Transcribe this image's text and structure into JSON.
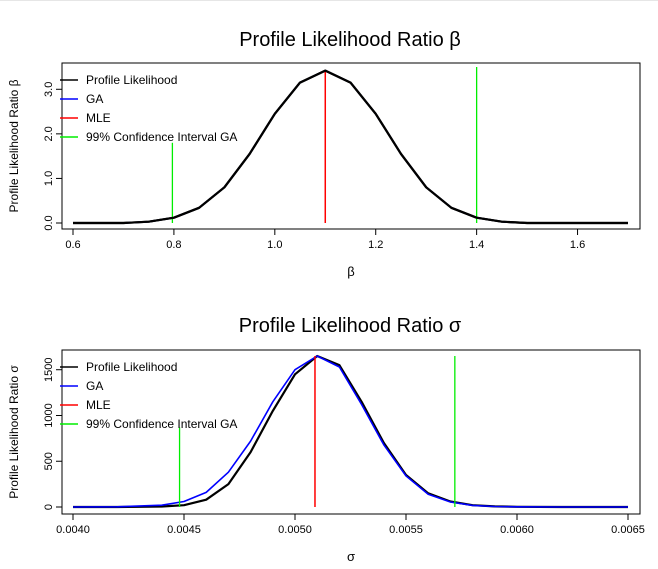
{
  "chart_data": [
    {
      "type": "line",
      "title": "Profile Likelihood Ratio β",
      "xlabel": "β",
      "ylabel": "Profile Likelihood Ratio β",
      "xlim": [
        0.6,
        1.7
      ],
      "ylim": [
        0,
        3.5
      ],
      "x_ticks": [
        "0.6",
        "0.8",
        "1.0",
        "1.2",
        "1.4",
        "1.6"
      ],
      "x_tick_values": [
        0.6,
        0.8,
        1.0,
        1.2,
        1.4,
        1.6
      ],
      "y_ticks": [
        "0.0",
        "1.0",
        "2.0",
        "3.0"
      ],
      "y_tick_values": [
        0,
        1,
        2,
        3
      ],
      "grid": false,
      "legend_position": "top-left",
      "series": [
        {
          "name": "Profile Likelihood",
          "color": "#000000",
          "kind": "line",
          "x": [
            0.6,
            0.65,
            0.7,
            0.75,
            0.8,
            0.85,
            0.9,
            0.95,
            1.0,
            1.05,
            1.1,
            1.15,
            1.2,
            1.25,
            1.3,
            1.35,
            1.4,
            1.45,
            1.5,
            1.55,
            1.6,
            1.65,
            1.7
          ],
          "y": [
            0.0,
            0.0,
            0.0,
            0.03,
            0.12,
            0.34,
            0.8,
            1.55,
            2.45,
            3.15,
            3.42,
            3.15,
            2.45,
            1.55,
            0.8,
            0.34,
            0.12,
            0.03,
            0.0,
            0.0,
            0.0,
            0.0,
            0.0
          ]
        },
        {
          "name": "GA",
          "color": "#0000ff",
          "kind": "line",
          "x": [
            0.6,
            0.65,
            0.7,
            0.75,
            0.8,
            0.85,
            0.9,
            0.95,
            1.0,
            1.05,
            1.1,
            1.15,
            1.2,
            1.25,
            1.3,
            1.35,
            1.4,
            1.45,
            1.5,
            1.55,
            1.6,
            1.65,
            1.7
          ],
          "y": [
            0.0,
            0.0,
            0.0,
            0.03,
            0.12,
            0.34,
            0.8,
            1.55,
            2.45,
            3.15,
            3.42,
            3.15,
            2.45,
            1.55,
            0.8,
            0.34,
            0.12,
            0.03,
            0.0,
            0.0,
            0.0,
            0.0,
            0.0
          ]
        },
        {
          "name": "MLE",
          "color": "#ff0000",
          "kind": "vline",
          "x": 1.1,
          "y_range": [
            0,
            3.42
          ]
        },
        {
          "name": "99% Confidence Interval GA",
          "color": "#00ee00",
          "kind": "vlines",
          "lines": [
            {
              "x": 0.797,
              "y_range": [
                0,
                1.8
              ]
            },
            {
              "x": 1.4,
              "y_range": [
                0,
                3.5
              ]
            }
          ]
        }
      ]
    },
    {
      "type": "line",
      "title": "Profile Likelihood Ratio σ",
      "xlabel": "σ",
      "ylabel": "Profile Likelihood Ratio σ",
      "xlim": [
        0.004,
        0.0065
      ],
      "ylim": [
        0,
        1650
      ],
      "x_ticks": [
        "0.0040",
        "0.0045",
        "0.0050",
        "0.0055",
        "0.0060",
        "0.0065"
      ],
      "x_tick_values": [
        0.004,
        0.0045,
        0.005,
        0.0055,
        0.006,
        0.0065
      ],
      "y_ticks": [
        "0",
        "500",
        "1000",
        "1500"
      ],
      "y_tick_values": [
        0,
        500,
        1000,
        1500
      ],
      "grid": false,
      "legend_position": "top-left",
      "series": [
        {
          "name": "Profile Likelihood",
          "color": "#000000",
          "kind": "line",
          "x": [
            0.004,
            0.0042,
            0.0044,
            0.0045,
            0.0046,
            0.0047,
            0.0048,
            0.0049,
            0.005,
            0.0051,
            0.0052,
            0.0053,
            0.0054,
            0.0055,
            0.0056,
            0.0057,
            0.0058,
            0.0059,
            0.006,
            0.0062,
            0.0065
          ],
          "y": [
            0,
            0,
            5,
            20,
            80,
            250,
            600,
            1050,
            1450,
            1650,
            1550,
            1150,
            700,
            350,
            150,
            60,
            20,
            7,
            2,
            0,
            0
          ]
        },
        {
          "name": "GA",
          "color": "#0000ff",
          "kind": "line",
          "x": [
            0.004,
            0.0042,
            0.0044,
            0.0045,
            0.0046,
            0.0047,
            0.0048,
            0.0049,
            0.005,
            0.0051,
            0.0052,
            0.0053,
            0.0054,
            0.0055,
            0.0056,
            0.0057,
            0.0058,
            0.0059,
            0.006,
            0.0062,
            0.0065
          ],
          "y": [
            0,
            2,
            20,
            60,
            160,
            380,
            720,
            1150,
            1500,
            1650,
            1530,
            1120,
            680,
            340,
            140,
            55,
            18,
            6,
            2,
            0,
            0
          ]
        },
        {
          "name": "MLE",
          "color": "#ff0000",
          "kind": "vline",
          "x": 0.00509,
          "y_range": [
            0,
            1650
          ]
        },
        {
          "name": "99% Confidence Interval GA",
          "color": "#00ee00",
          "kind": "vlines",
          "lines": [
            {
              "x": 0.00448,
              "y_range": [
                0,
                870
              ]
            },
            {
              "x": 0.00572,
              "y_range": [
                0,
                1650
              ]
            }
          ]
        }
      ]
    }
  ]
}
